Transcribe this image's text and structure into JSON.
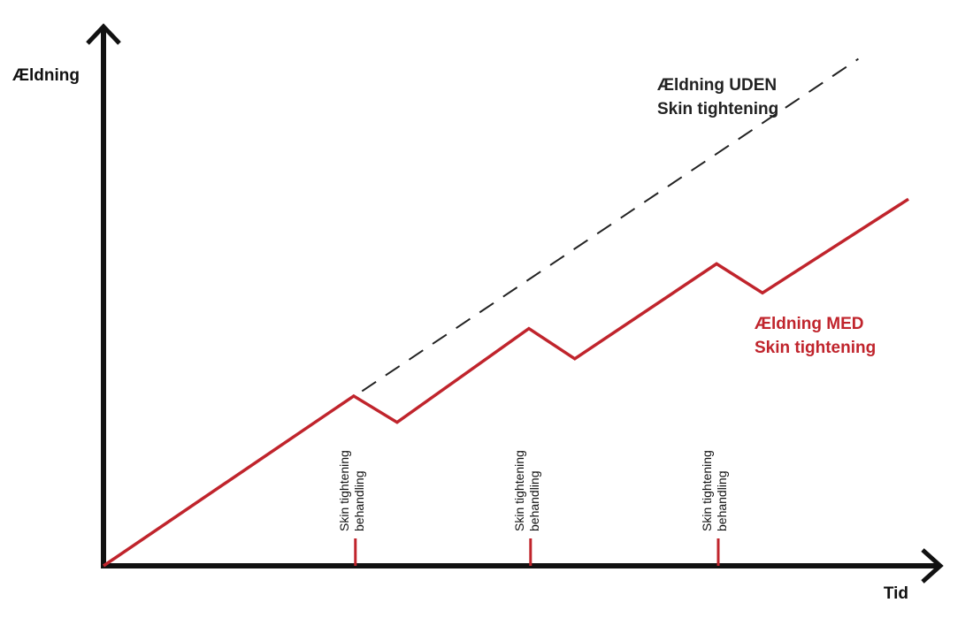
{
  "chart_data": {
    "type": "line",
    "xlabel": "Tid",
    "ylabel": "Ældning",
    "xlim": [
      0,
      100
    ],
    "ylim": [
      0,
      100
    ],
    "grid": false,
    "colors": {
      "axis": "#111111",
      "with": "#c0242c",
      "without": "#222222"
    },
    "series": [
      {
        "name_lines": [
          "Ældning MED",
          "Skin tightening"
        ],
        "style": "solid",
        "points": [
          [
            0,
            0
          ],
          [
            30,
            31.5
          ],
          [
            35.2,
            26.6
          ],
          [
            51,
            44
          ],
          [
            56.5,
            38.4
          ],
          [
            73.5,
            56
          ],
          [
            79,
            50.6
          ],
          [
            96.5,
            68
          ]
        ]
      },
      {
        "name_lines": [
          "Ældning UDEN",
          "Skin tightening"
        ],
        "style": "dashed",
        "points": [
          [
            31,
            32.4
          ],
          [
            90.5,
            94
          ]
        ]
      }
    ],
    "markers": [
      {
        "x": 30.2,
        "lines": [
          "Skin tightening",
          "behandling"
        ]
      },
      {
        "x": 51.2,
        "lines": [
          "Skin tightening",
          "behandling"
        ]
      },
      {
        "x": 73.7,
        "lines": [
          "Skin tightening",
          "behandling"
        ]
      }
    ]
  }
}
